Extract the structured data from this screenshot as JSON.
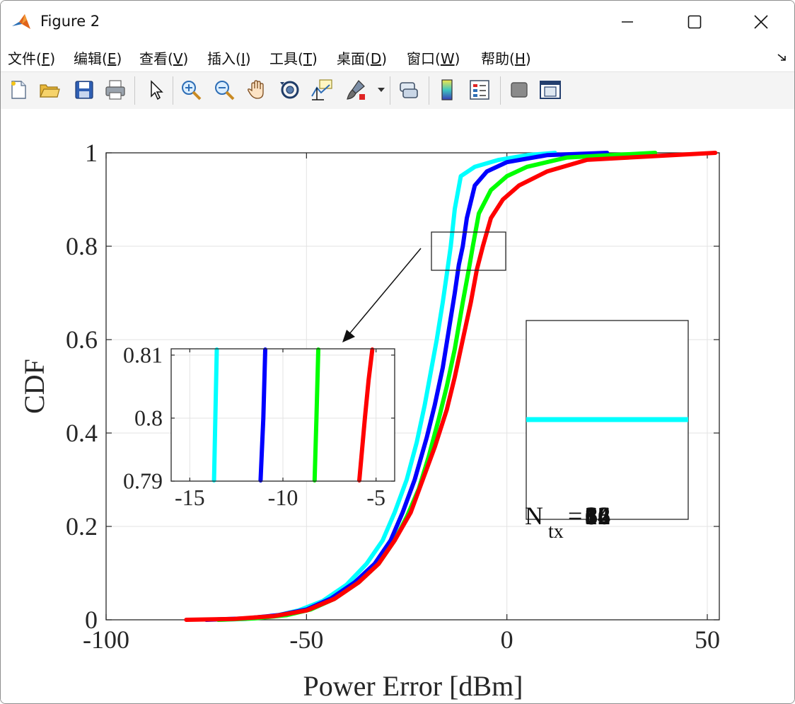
{
  "window": {
    "title": "Figure 2",
    "controls": {
      "minimize": "minimize",
      "maximize": "maximize",
      "close": "close"
    }
  },
  "menubar": {
    "items": [
      {
        "pre": "文件(",
        "key": "F",
        "post": ")"
      },
      {
        "pre": "编辑(",
        "key": "E",
        "post": ")"
      },
      {
        "pre": "查看(",
        "key": "V",
        "post": ")"
      },
      {
        "pre": "插入(",
        "key": "I",
        "post": ")"
      },
      {
        "pre": "工具(",
        "key": "T",
        "post": ")"
      },
      {
        "pre": "桌面(",
        "key": "D",
        "post": ")"
      },
      {
        "pre": "窗口(",
        "key": "W",
        "post": ")"
      },
      {
        "pre": "帮助(",
        "key": "H",
        "post": ")"
      }
    ]
  },
  "toolbar": {
    "icons": [
      "new-figure-icon",
      "open-file-icon",
      "save-icon",
      "print-icon",
      "select-pointer-icon",
      "zoom-in-icon",
      "zoom-out-icon",
      "pan-hand-icon",
      "rotate-3d-icon",
      "data-cursor-icon",
      "brush-icon",
      "link-plot-icon",
      "colorbar-icon",
      "legend-icon",
      "hide-plot-tools-icon",
      "show-plot-tools-icon"
    ]
  },
  "colors": {
    "series_colors": [
      "#00ffff",
      "#0000ff",
      "#00ff00",
      "#ff0000"
    ],
    "grid": "#e3e3e3",
    "axes": "#262626"
  },
  "chart_data": [
    {
      "type": "line",
      "title": "",
      "xlabel": "Power Error [dBm]",
      "ylabel": "CDF",
      "xlim": [
        -100,
        53
      ],
      "ylim": [
        0,
        1
      ],
      "xticks": [
        "-100",
        "-50",
        "0",
        "50"
      ],
      "yticks": [
        "0",
        "0.2",
        "0.4",
        "0.6",
        "0.8",
        "1"
      ],
      "grid": true,
      "series": [
        {
          "color": "#00ffff",
          "x": [
            -72,
            -65,
            -58,
            -52,
            -46,
            -40,
            -35,
            -31,
            -28,
            -25,
            -22.5,
            -20.5,
            -19,
            -17.5,
            -16,
            -15,
            -14,
            -13,
            -11.5,
            -8,
            -2,
            5,
            12
          ],
          "y": [
            0,
            0.002,
            0.008,
            0.02,
            0.04,
            0.075,
            0.12,
            0.17,
            0.23,
            0.3,
            0.38,
            0.46,
            0.53,
            0.6,
            0.68,
            0.74,
            0.8,
            0.88,
            0.95,
            0.97,
            0.985,
            0.995,
            1
          ]
        },
        {
          "color": "#0000ff",
          "x": [
            -75,
            -65,
            -57,
            -50,
            -44,
            -38,
            -33,
            -29,
            -26,
            -23,
            -20,
            -18,
            -16,
            -14.5,
            -13,
            -12,
            -11,
            -10,
            -8,
            -5,
            0,
            10,
            25
          ],
          "y": [
            0,
            0.003,
            0.01,
            0.022,
            0.045,
            0.08,
            0.12,
            0.17,
            0.23,
            0.3,
            0.39,
            0.46,
            0.54,
            0.62,
            0.7,
            0.76,
            0.8,
            0.86,
            0.93,
            0.96,
            0.98,
            0.995,
            1
          ]
        },
        {
          "color": "#00ff00",
          "x": [
            -72,
            -63,
            -55,
            -49,
            -43,
            -37,
            -32,
            -28,
            -25,
            -22,
            -19.5,
            -17,
            -15,
            -13,
            -11,
            -9.5,
            -8.5,
            -7,
            -4,
            0,
            5,
            15,
            37
          ],
          "y": [
            0,
            0.003,
            0.01,
            0.022,
            0.045,
            0.08,
            0.12,
            0.17,
            0.22,
            0.28,
            0.35,
            0.43,
            0.5,
            0.58,
            0.68,
            0.75,
            0.8,
            0.87,
            0.92,
            0.95,
            0.97,
            0.99,
            1
          ]
        },
        {
          "color": "#ff0000",
          "x": [
            -80,
            -68,
            -58,
            -50,
            -43,
            -37,
            -32,
            -28,
            -24,
            -21,
            -18,
            -15,
            -13,
            -11,
            -9,
            -7.5,
            -6,
            -4,
            -1,
            3,
            10,
            20,
            52
          ],
          "y": [
            0,
            0.002,
            0.008,
            0.02,
            0.045,
            0.08,
            0.12,
            0.17,
            0.23,
            0.3,
            0.37,
            0.45,
            0.52,
            0.6,
            0.68,
            0.75,
            0.8,
            0.86,
            0.9,
            0.93,
            0.96,
            0.985,
            1
          ]
        }
      ]
    },
    {
      "type": "line",
      "title": "",
      "xlabel": "",
      "ylabel": "",
      "xlim": [
        -16,
        -4
      ],
      "ylim": [
        0.79,
        0.811
      ],
      "xticks": [
        "-15",
        "-10",
        "-5"
      ],
      "yticks": [
        "0.79",
        "0.8",
        "0.81"
      ],
      "grid": true,
      "series": [
        {
          "color": "#00ffff",
          "x": [
            -13.7,
            -13.55
          ],
          "y": [
            0.79,
            0.811
          ]
        },
        {
          "color": "#0000ff",
          "x": [
            -11.2,
            -11.05,
            -10.95
          ],
          "y": [
            0.79,
            0.8,
            0.811
          ]
        },
        {
          "color": "#00ff00",
          "x": [
            -8.3,
            -8.2,
            -8.1
          ],
          "y": [
            0.79,
            0.8,
            0.811
          ]
        },
        {
          "color": "#ff0000",
          "x": [
            -5.9,
            -5.6,
            -5.4,
            -5.2
          ],
          "y": [
            0.79,
            0.8,
            0.806,
            0.811
          ]
        }
      ]
    }
  ],
  "legend_box": {
    "label_main": "N",
    "label_sub": "tx",
    "label_eq": "=",
    "values": [
      "64",
      "32",
      "16",
      "8"
    ]
  }
}
